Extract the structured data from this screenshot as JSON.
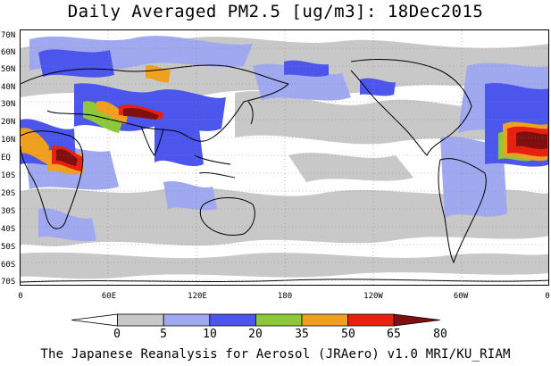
{
  "title": "Daily Averaged PM2.5 [ug/m3]: 18Dec2015",
  "footer": "The Japanese Reanalysis for Aerosol (JRAero) v1.0 MRI/KU_RIAM",
  "lat_labels": [
    "70N",
    "60N",
    "50N",
    "40N",
    "30N",
    "20N",
    "10N",
    "EQ",
    "10S",
    "20S",
    "30S",
    "40S",
    "50S",
    "60S",
    "70S"
  ],
  "lon_labels": [
    "0",
    "60E",
    "120E",
    "180",
    "120W",
    "60W",
    "0"
  ],
  "colorbar": {
    "levels": [
      "0",
      "5",
      "10",
      "20",
      "35",
      "50",
      "65",
      "80"
    ],
    "colors": [
      "#ffffff",
      "#c8c8c8",
      "#a0a8f0",
      "#4c56ec",
      "#8cc838",
      "#f0a020",
      "#e82010",
      "#801010"
    ]
  },
  "map_style": {
    "land_outline": "#000000",
    "grid": "dotted",
    "background": "#ffffff"
  }
}
